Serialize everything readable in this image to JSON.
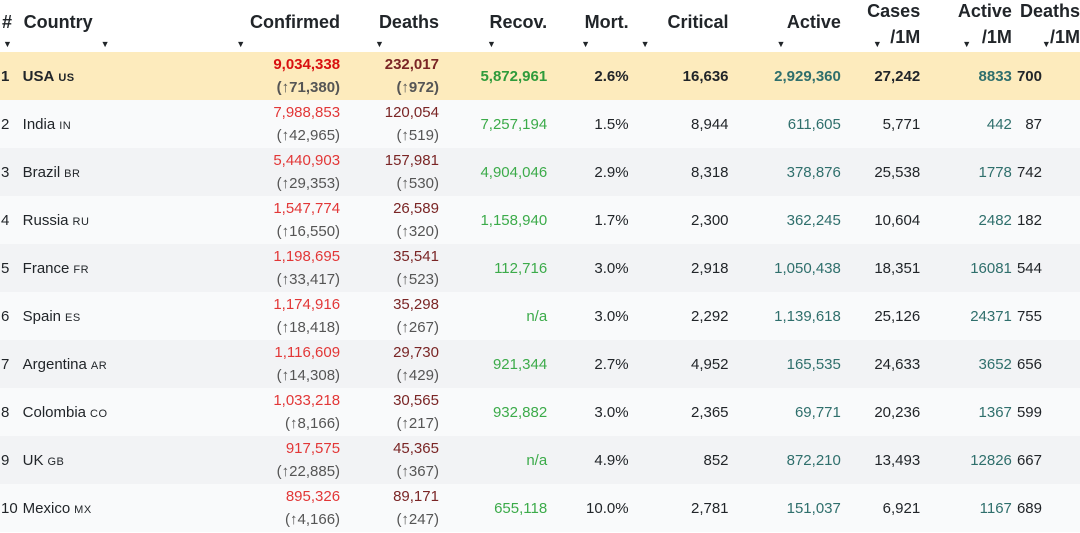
{
  "headers": {
    "rank": "#",
    "country": "Country",
    "confirmed": "Confirmed",
    "deaths": "Deaths",
    "recovered": "Recov.",
    "mortality": "Mort.",
    "critical": "Critical",
    "active": "Active",
    "cases_per_m_top": "Cases",
    "cases_per_m_bottom": "/1M",
    "active_per_m_top": "Active",
    "active_per_m_bottom": "/1M",
    "deaths_per_m_top": "Deaths",
    "deaths_per_m_bottom": "/1M"
  },
  "icons": {
    "sort": "sort-arrow-icon"
  },
  "rows": [
    {
      "rank": "1",
      "country": "USA",
      "code": "US",
      "confirmed": "9,034,338",
      "confirmed_delta": "(↑71,380)",
      "deaths": "232,017",
      "deaths_delta": "(↑972)",
      "recovered": "5,872,961",
      "mortality": "2.6%",
      "critical": "16,636",
      "active": "2,929,360",
      "cases_per_m": "27,242",
      "active_per_m": "8833",
      "deaths_per_m": "700"
    },
    {
      "rank": "2",
      "country": "India",
      "code": "IN",
      "confirmed": "7,988,853",
      "confirmed_delta": "(↑42,965)",
      "deaths": "120,054",
      "deaths_delta": "(↑519)",
      "recovered": "7,257,194",
      "mortality": "1.5%",
      "critical": "8,944",
      "active": "611,605",
      "cases_per_m": "5,771",
      "active_per_m": "442",
      "deaths_per_m": "87"
    },
    {
      "rank": "3",
      "country": "Brazil",
      "code": "BR",
      "confirmed": "5,440,903",
      "confirmed_delta": "(↑29,353)",
      "deaths": "157,981",
      "deaths_delta": "(↑530)",
      "recovered": "4,904,046",
      "mortality": "2.9%",
      "critical": "8,318",
      "active": "378,876",
      "cases_per_m": "25,538",
      "active_per_m": "1778",
      "deaths_per_m": "742"
    },
    {
      "rank": "4",
      "country": "Russia",
      "code": "RU",
      "confirmed": "1,547,774",
      "confirmed_delta": "(↑16,550)",
      "deaths": "26,589",
      "deaths_delta": "(↑320)",
      "recovered": "1,158,940",
      "mortality": "1.7%",
      "critical": "2,300",
      "active": "362,245",
      "cases_per_m": "10,604",
      "active_per_m": "2482",
      "deaths_per_m": "182"
    },
    {
      "rank": "5",
      "country": "France",
      "code": "FR",
      "confirmed": "1,198,695",
      "confirmed_delta": "(↑33,417)",
      "deaths": "35,541",
      "deaths_delta": "(↑523)",
      "recovered": "112,716",
      "mortality": "3.0%",
      "critical": "2,918",
      "active": "1,050,438",
      "cases_per_m": "18,351",
      "active_per_m": "16081",
      "deaths_per_m": "544"
    },
    {
      "rank": "6",
      "country": "Spain",
      "code": "ES",
      "confirmed": "1,174,916",
      "confirmed_delta": "(↑18,418)",
      "deaths": "35,298",
      "deaths_delta": "(↑267)",
      "recovered": "n/a",
      "mortality": "3.0%",
      "critical": "2,292",
      "active": "1,139,618",
      "cases_per_m": "25,126",
      "active_per_m": "24371",
      "deaths_per_m": "755"
    },
    {
      "rank": "7",
      "country": "Argentina",
      "code": "AR",
      "confirmed": "1,116,609",
      "confirmed_delta": "(↑14,308)",
      "deaths": "29,730",
      "deaths_delta": "(↑429)",
      "recovered": "921,344",
      "mortality": "2.7%",
      "critical": "4,952",
      "active": "165,535",
      "cases_per_m": "24,633",
      "active_per_m": "3652",
      "deaths_per_m": "656"
    },
    {
      "rank": "8",
      "country": "Colombia",
      "code": "CO",
      "confirmed": "1,033,218",
      "confirmed_delta": "(↑8,166)",
      "deaths": "30,565",
      "deaths_delta": "(↑217)",
      "recovered": "932,882",
      "mortality": "3.0%",
      "critical": "2,365",
      "active": "69,771",
      "cases_per_m": "20,236",
      "active_per_m": "1367",
      "deaths_per_m": "599"
    },
    {
      "rank": "9",
      "country": "UK",
      "code": "GB",
      "confirmed": "917,575",
      "confirmed_delta": "(↑22,885)",
      "deaths": "45,365",
      "deaths_delta": "(↑367)",
      "recovered": "n/a",
      "mortality": "4.9%",
      "critical": "852",
      "active": "872,210",
      "cases_per_m": "13,493",
      "active_per_m": "12826",
      "deaths_per_m": "667"
    },
    {
      "rank": "10",
      "country": "Mexico",
      "code": "MX",
      "confirmed": "895,326",
      "confirmed_delta": "(↑4,166)",
      "deaths": "89,171",
      "deaths_delta": "(↑247)",
      "recovered": "655,118",
      "mortality": "10.0%",
      "critical": "2,781",
      "active": "151,037",
      "cases_per_m": "6,921",
      "active_per_m": "1167",
      "deaths_per_m": "689"
    }
  ]
}
